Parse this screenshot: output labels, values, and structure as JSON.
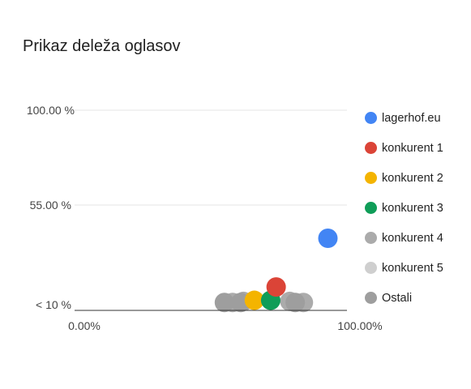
{
  "chart_data": {
    "type": "scatter",
    "title": "Prikaz deleža oglasov",
    "xlabel": "",
    "ylabel": "",
    "x_ticks": [
      "0.00%",
      "100.00%"
    ],
    "y_ticks": [
      "< 10 %",
      "55.00 %",
      "100.00 %"
    ],
    "y_tick_values": [
      10,
      55,
      100
    ],
    "xlim": [
      0,
      100
    ],
    "ylim": [
      10,
      100
    ],
    "grid": true,
    "legend_position": "right",
    "series": [
      {
        "name": "lagerhof.eu",
        "color": "#4285f4",
        "points": [
          {
            "x": 93,
            "y": 40
          }
        ]
      },
      {
        "name": "konkurent 1",
        "color": "#db4437",
        "points": [
          {
            "x": 74,
            "y": 18
          }
        ]
      },
      {
        "name": "konkurent 2",
        "color": "#f4b400",
        "points": [
          {
            "x": 66,
            "y": 12
          }
        ]
      },
      {
        "name": "konkurent 3",
        "color": "#0f9d58",
        "points": [
          {
            "x": 72,
            "y": 12
          }
        ]
      },
      {
        "name": "konkurent 4",
        "color": "#ababab",
        "points": [
          {
            "x": 58,
            "y": 11
          },
          {
            "x": 62,
            "y": 11.5
          },
          {
            "x": 84,
            "y": 11
          },
          {
            "x": 79,
            "y": 11.5
          }
        ]
      },
      {
        "name": "konkurent 5",
        "color": "#cfcfcf",
        "points": []
      },
      {
        "name": "Ostali",
        "color": "#9e9e9e",
        "points": [
          {
            "x": 55,
            "y": 11
          },
          {
            "x": 61,
            "y": 11
          },
          {
            "x": 81,
            "y": 11
          }
        ]
      }
    ]
  }
}
